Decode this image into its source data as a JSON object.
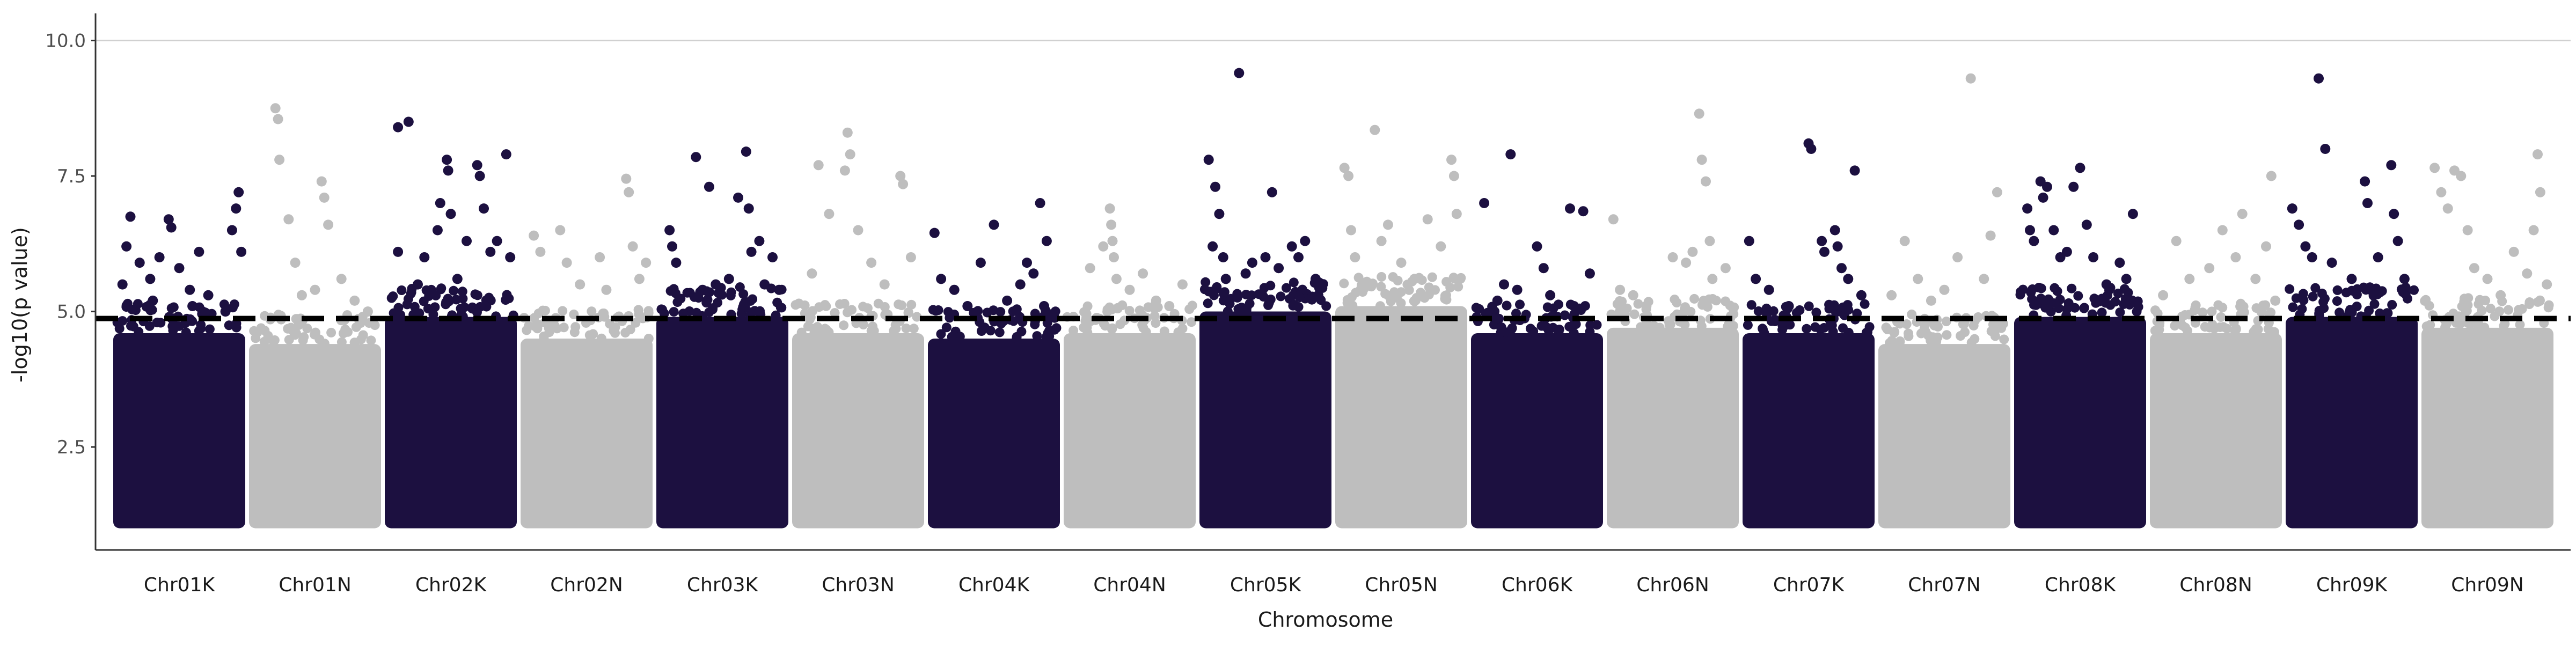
{
  "chart_data": {
    "type": "scatter",
    "title": "",
    "xlabel": "Chromosome",
    "ylabel": "-log10(p value)",
    "ylim": [
      0.6,
      10.5
    ],
    "y_ticks": [
      "2.5",
      "5.0",
      "7.5",
      "10.0"
    ],
    "y_tick_values": [
      2.5,
      5.0,
      7.5,
      10.0
    ],
    "grid": {
      "horizontal_line_at": 10.0
    },
    "threshold": 4.87,
    "colors": {
      "K": "#1c1040",
      "N": "#bebebe",
      "threshold": "#000000"
    },
    "categories": [
      "Chr01K",
      "Chr01N",
      "Chr02K",
      "Chr02N",
      "Chr03K",
      "Chr03N",
      "Chr04K",
      "Chr04N",
      "Chr05K",
      "Chr05N",
      "Chr06K",
      "Chr06N",
      "Chr07K",
      "Chr07N",
      "Chr08K",
      "Chr08N",
      "Chr09K",
      "Chr09N"
    ],
    "series": [
      {
        "category": "Chr01K",
        "color": "#1c1040",
        "dense_top": 4.6,
        "points": [
          [
            0.07,
            5.5
          ],
          [
            0.1,
            6.2
          ],
          [
            0.13,
            6.75
          ],
          [
            0.2,
            5.9
          ],
          [
            0.28,
            5.6
          ],
          [
            0.35,
            6.0
          ],
          [
            0.42,
            6.7
          ],
          [
            0.44,
            6.55
          ],
          [
            0.5,
            5.8
          ],
          [
            0.58,
            5.4
          ],
          [
            0.65,
            6.1
          ],
          [
            0.72,
            5.3
          ],
          [
            0.85,
            5.0
          ],
          [
            0.9,
            6.5
          ],
          [
            0.93,
            6.9
          ],
          [
            0.95,
            7.2
          ],
          [
            0.97,
            6.1
          ],
          [
            0.3,
            5.2
          ],
          [
            0.6,
            5.1
          ]
        ]
      },
      {
        "category": "Chr01N",
        "color": "#bebebe",
        "dense_top": 4.4,
        "points": [
          [
            0.2,
            8.75
          ],
          [
            0.22,
            8.55
          ],
          [
            0.23,
            7.8
          ],
          [
            0.3,
            6.7
          ],
          [
            0.35,
            5.9
          ],
          [
            0.5,
            5.4
          ],
          [
            0.55,
            7.4
          ],
          [
            0.57,
            7.1
          ],
          [
            0.6,
            6.6
          ],
          [
            0.7,
            5.6
          ],
          [
            0.8,
            5.2
          ],
          [
            0.9,
            5.0
          ],
          [
            0.4,
            5.3
          ]
        ]
      },
      {
        "category": "Chr02K",
        "color": "#1c1040",
        "dense_top": 4.9,
        "points": [
          [
            0.1,
            8.4
          ],
          [
            0.18,
            8.5
          ],
          [
            0.1,
            6.1
          ],
          [
            0.3,
            6.0
          ],
          [
            0.4,
            6.5
          ],
          [
            0.42,
            7.0
          ],
          [
            0.47,
            7.8
          ],
          [
            0.48,
            7.6
          ],
          [
            0.5,
            6.8
          ],
          [
            0.62,
            6.3
          ],
          [
            0.7,
            7.7
          ],
          [
            0.72,
            7.5
          ],
          [
            0.75,
            6.9
          ],
          [
            0.8,
            6.1
          ],
          [
            0.85,
            6.3
          ],
          [
            0.92,
            7.9
          ],
          [
            0.95,
            6.0
          ],
          [
            0.55,
            5.6
          ],
          [
            0.25,
            5.5
          ]
        ]
      },
      {
        "category": "Chr02N",
        "color": "#bebebe",
        "dense_top": 4.5,
        "points": [
          [
            0.1,
            6.4
          ],
          [
            0.15,
            6.1
          ],
          [
            0.3,
            6.5
          ],
          [
            0.35,
            5.9
          ],
          [
            0.45,
            5.5
          ],
          [
            0.6,
            6.0
          ],
          [
            0.65,
            5.4
          ],
          [
            0.8,
            7.45
          ],
          [
            0.82,
            7.2
          ],
          [
            0.85,
            6.2
          ],
          [
            0.9,
            5.6
          ],
          [
            0.95,
            5.9
          ]
        ]
      },
      {
        "category": "Chr03K",
        "color": "#1c1040",
        "dense_top": 4.9,
        "points": [
          [
            0.1,
            6.5
          ],
          [
            0.12,
            6.2
          ],
          [
            0.15,
            5.9
          ],
          [
            0.3,
            7.85
          ],
          [
            0.35,
            5.4
          ],
          [
            0.4,
            7.3
          ],
          [
            0.45,
            5.5
          ],
          [
            0.55,
            5.6
          ],
          [
            0.62,
            7.1
          ],
          [
            0.68,
            7.95
          ],
          [
            0.7,
            6.9
          ],
          [
            0.72,
            6.1
          ],
          [
            0.78,
            6.3
          ],
          [
            0.82,
            5.5
          ],
          [
            0.88,
            6.0
          ],
          [
            0.93,
            5.4
          ]
        ]
      },
      {
        "category": "Chr03N",
        "color": "#bebebe",
        "dense_top": 4.6,
        "points": [
          [
            0.2,
            7.7
          ],
          [
            0.28,
            6.8
          ],
          [
            0.4,
            7.6
          ],
          [
            0.42,
            8.3
          ],
          [
            0.44,
            7.9
          ],
          [
            0.5,
            6.5
          ],
          [
            0.6,
            5.9
          ],
          [
            0.7,
            5.5
          ],
          [
            0.82,
            7.5
          ],
          [
            0.84,
            7.35
          ],
          [
            0.9,
            6.0
          ],
          [
            0.15,
            5.7
          ]
        ]
      },
      {
        "category": "Chr04K",
        "color": "#1c1040",
        "dense_top": 4.5,
        "points": [
          [
            0.05,
            6.45
          ],
          [
            0.1,
            5.6
          ],
          [
            0.2,
            5.4
          ],
          [
            0.3,
            5.1
          ],
          [
            0.4,
            5.9
          ],
          [
            0.5,
            6.6
          ],
          [
            0.6,
            5.2
          ],
          [
            0.7,
            5.5
          ],
          [
            0.75,
            5.9
          ],
          [
            0.8,
            5.7
          ],
          [
            0.85,
            7.0
          ],
          [
            0.9,
            6.3
          ],
          [
            0.88,
            5.1
          ]
        ]
      },
      {
        "category": "Chr04N",
        "color": "#bebebe",
        "dense_top": 4.6,
        "points": [
          [
            0.2,
            5.8
          ],
          [
            0.3,
            6.2
          ],
          [
            0.35,
            6.9
          ],
          [
            0.36,
            6.6
          ],
          [
            0.37,
            6.3
          ],
          [
            0.38,
            6.0
          ],
          [
            0.4,
            5.6
          ],
          [
            0.5,
            5.4
          ],
          [
            0.6,
            5.7
          ],
          [
            0.7,
            5.2
          ],
          [
            0.8,
            5.1
          ],
          [
            0.9,
            5.5
          ]
        ]
      },
      {
        "category": "Chr05K",
        "color": "#1c1040",
        "dense_top": 5.0,
        "points": [
          [
            0.07,
            7.8
          ],
          [
            0.1,
            6.2
          ],
          [
            0.12,
            7.3
          ],
          [
            0.15,
            6.8
          ],
          [
            0.18,
            6.0
          ],
          [
            0.2,
            5.6
          ],
          [
            0.3,
            9.4
          ],
          [
            0.35,
            5.7
          ],
          [
            0.4,
            5.9
          ],
          [
            0.5,
            6.0
          ],
          [
            0.55,
            7.2
          ],
          [
            0.6,
            5.8
          ],
          [
            0.7,
            6.2
          ],
          [
            0.75,
            6.0
          ],
          [
            0.8,
            6.3
          ],
          [
            0.88,
            5.6
          ],
          [
            0.9,
            5.3
          ]
        ]
      },
      {
        "category": "Chr05N",
        "color": "#bebebe",
        "dense_top": 5.1,
        "points": [
          [
            0.07,
            7.65
          ],
          [
            0.1,
            7.5
          ],
          [
            0.12,
            6.5
          ],
          [
            0.15,
            6.0
          ],
          [
            0.3,
            8.35
          ],
          [
            0.35,
            6.3
          ],
          [
            0.4,
            6.6
          ],
          [
            0.5,
            5.9
          ],
          [
            0.6,
            5.6
          ],
          [
            0.7,
            6.7
          ],
          [
            0.8,
            6.2
          ],
          [
            0.88,
            7.8
          ],
          [
            0.9,
            7.5
          ],
          [
            0.92,
            6.8
          ]
        ]
      },
      {
        "category": "Chr06K",
        "color": "#1c1040",
        "dense_top": 4.6,
        "points": [
          [
            0.1,
            7.0
          ],
          [
            0.3,
            7.9
          ],
          [
            0.2,
            5.2
          ],
          [
            0.25,
            5.5
          ],
          [
            0.35,
            5.4
          ],
          [
            0.5,
            6.2
          ],
          [
            0.55,
            5.8
          ],
          [
            0.6,
            5.3
          ],
          [
            0.75,
            6.9
          ],
          [
            0.78,
            5.1
          ],
          [
            0.85,
            6.85
          ],
          [
            0.9,
            5.7
          ]
        ]
      },
      {
        "category": "Chr06N",
        "color": "#bebebe",
        "dense_top": 4.7,
        "points": [
          [
            0.05,
            6.7
          ],
          [
            0.1,
            5.4
          ],
          [
            0.2,
            5.3
          ],
          [
            0.3,
            5.1
          ],
          [
            0.5,
            6.0
          ],
          [
            0.6,
            5.9
          ],
          [
            0.7,
            8.65
          ],
          [
            0.72,
            7.8
          ],
          [
            0.75,
            7.4
          ],
          [
            0.78,
            6.3
          ],
          [
            0.8,
            5.6
          ],
          [
            0.9,
            5.8
          ],
          [
            0.65,
            6.1
          ]
        ]
      },
      {
        "category": "Chr07K",
        "color": "#1c1040",
        "dense_top": 4.6,
        "points": [
          [
            0.05,
            6.3
          ],
          [
            0.1,
            5.6
          ],
          [
            0.2,
            5.4
          ],
          [
            0.35,
            5.1
          ],
          [
            0.5,
            8.1
          ],
          [
            0.52,
            8.0
          ],
          [
            0.6,
            6.3
          ],
          [
            0.62,
            6.1
          ],
          [
            0.7,
            6.5
          ],
          [
            0.72,
            6.2
          ],
          [
            0.75,
            5.8
          ],
          [
            0.8,
            5.6
          ],
          [
            0.85,
            7.6
          ],
          [
            0.9,
            5.3
          ]
        ]
      },
      {
        "category": "Chr07N",
        "color": "#bebebe",
        "dense_top": 4.4,
        "points": [
          [
            0.1,
            5.3
          ],
          [
            0.2,
            6.3
          ],
          [
            0.3,
            5.6
          ],
          [
            0.4,
            5.2
          ],
          [
            0.5,
            5.4
          ],
          [
            0.6,
            6.0
          ],
          [
            0.7,
            9.3
          ],
          [
            0.8,
            5.6
          ],
          [
            0.85,
            6.4
          ],
          [
            0.9,
            7.2
          ]
        ]
      },
      {
        "category": "Chr08K",
        "color": "#1c1040",
        "dense_top": 4.9,
        "points": [
          [
            0.1,
            6.9
          ],
          [
            0.12,
            6.5
          ],
          [
            0.15,
            6.3
          ],
          [
            0.2,
            7.4
          ],
          [
            0.22,
            7.1
          ],
          [
            0.25,
            7.3
          ],
          [
            0.3,
            6.5
          ],
          [
            0.35,
            6.0
          ],
          [
            0.4,
            6.1
          ],
          [
            0.45,
            7.3
          ],
          [
            0.5,
            7.65
          ],
          [
            0.55,
            6.6
          ],
          [
            0.6,
            6.0
          ],
          [
            0.7,
            5.5
          ],
          [
            0.8,
            5.9
          ],
          [
            0.9,
            6.8
          ],
          [
            0.85,
            5.6
          ]
        ]
      },
      {
        "category": "Chr08N",
        "color": "#bebebe",
        "dense_top": 4.6,
        "points": [
          [
            0.1,
            5.3
          ],
          [
            0.2,
            6.3
          ],
          [
            0.3,
            5.6
          ],
          [
            0.45,
            5.8
          ],
          [
            0.55,
            6.5
          ],
          [
            0.65,
            6.0
          ],
          [
            0.7,
            6.8
          ],
          [
            0.8,
            5.6
          ],
          [
            0.88,
            6.2
          ],
          [
            0.92,
            7.5
          ],
          [
            0.95,
            5.2
          ]
        ]
      },
      {
        "category": "Chr09K",
        "color": "#1c1040",
        "dense_top": 4.9,
        "points": [
          [
            0.05,
            6.9
          ],
          [
            0.1,
            6.6
          ],
          [
            0.15,
            6.2
          ],
          [
            0.2,
            6.0
          ],
          [
            0.25,
            9.3
          ],
          [
            0.3,
            8.0
          ],
          [
            0.35,
            5.9
          ],
          [
            0.5,
            5.6
          ],
          [
            0.6,
            7.4
          ],
          [
            0.62,
            7.0
          ],
          [
            0.7,
            6.0
          ],
          [
            0.8,
            7.7
          ],
          [
            0.82,
            6.8
          ],
          [
            0.85,
            6.3
          ],
          [
            0.9,
            5.6
          ]
        ]
      },
      {
        "category": "Chr09N",
        "color": "#bebebe",
        "dense_top": 4.7,
        "points": [
          [
            0.1,
            7.65
          ],
          [
            0.15,
            7.2
          ],
          [
            0.2,
            6.9
          ],
          [
            0.25,
            7.6
          ],
          [
            0.3,
            7.5
          ],
          [
            0.35,
            6.5
          ],
          [
            0.4,
            5.8
          ],
          [
            0.5,
            5.6
          ],
          [
            0.6,
            5.3
          ],
          [
            0.7,
            6.1
          ],
          [
            0.8,
            5.7
          ],
          [
            0.85,
            6.5
          ],
          [
            0.88,
            7.9
          ],
          [
            0.9,
            7.2
          ],
          [
            0.95,
            5.5
          ]
        ]
      }
    ]
  }
}
